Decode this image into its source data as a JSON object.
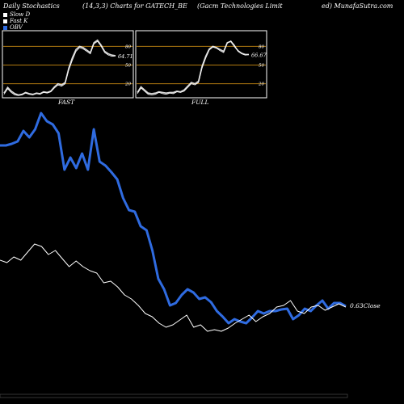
{
  "header": {
    "left": "Daily Stochastics",
    "params": "(14,3,3) Charts for GATECH_BE",
    "company": "(Gacm Technologies Limit",
    "site": "ed) MunafaSutra.com"
  },
  "legend": [
    {
      "label": "Slow D",
      "color": "#ffffff"
    },
    {
      "label": "Fast K",
      "color": "#ffffff"
    },
    {
      "label": "OBV",
      "color": "#2f6be0"
    }
  ],
  "colors": {
    "obv": "#2f6be0",
    "price": "#ffffff",
    "level_line": "#b07a10",
    "background": "#000000"
  },
  "chart_data": [
    {
      "type": "line",
      "title": "FAST",
      "ylim": [
        0,
        100
      ],
      "yticks": [
        "80",
        "50",
        "20"
      ],
      "last_value_label": "64.71",
      "series": [
        {
          "values": [
            5,
            14,
            8,
            4,
            2,
            3,
            6,
            4,
            3,
            5,
            4,
            7,
            6,
            8,
            15,
            20,
            18,
            22,
            45,
            62,
            75,
            80,
            78,
            74,
            70,
            86,
            90,
            82,
            72,
            68,
            66,
            65
          ]
        },
        {
          "values": [
            3,
            12,
            6,
            2,
            1,
            2,
            5,
            3,
            2,
            4,
            3,
            6,
            5,
            7,
            13,
            18,
            16,
            20,
            42,
            58,
            72,
            78,
            76,
            72,
            68,
            84,
            88,
            80,
            70,
            66,
            64,
            64.71
          ]
        }
      ]
    },
    {
      "type": "line",
      "title": "FULL",
      "ylim": [
        0,
        100
      ],
      "yticks": [
        "80",
        "50",
        "20"
      ],
      "last_value_label": "66.67",
      "series": [
        {
          "values": [
            6,
            15,
            10,
            5,
            4,
            5,
            7,
            6,
            5,
            6,
            6,
            8,
            7,
            10,
            16,
            22,
            20,
            24,
            48,
            64,
            76,
            80,
            78,
            75,
            72,
            86,
            88,
            80,
            73,
            69,
            67,
            67
          ]
        },
        {
          "values": [
            4,
            13,
            8,
            3,
            2,
            3,
            6,
            4,
            3,
            5,
            4,
            7,
            6,
            8,
            14,
            20,
            18,
            22,
            45,
            61,
            74,
            79,
            77,
            73,
            70,
            85,
            89,
            82,
            72,
            68,
            66,
            66.67
          ]
        }
      ]
    },
    {
      "type": "line",
      "title": "",
      "last_value_label": "0.63",
      "series_label": "Close",
      "series": [
        {
          "name": "OBV",
          "color": "#2f6be0",
          "values": [
            180,
            180,
            178,
            175,
            162,
            170,
            160,
            140,
            150,
            154,
            165,
            210,
            195,
            208,
            190,
            210,
            160,
            200,
            205,
            213,
            222,
            245,
            260,
            262,
            280,
            285,
            310,
            345,
            358,
            378,
            375,
            365,
            358,
            362,
            370,
            368,
            374,
            385,
            392,
            400,
            395,
            398,
            400,
            393,
            385,
            388,
            385,
            385,
            383,
            382,
            395,
            390,
            382,
            385,
            378,
            372,
            382,
            375,
            375,
            379
          ]
        },
        {
          "name": "Close",
          "color": "#ffffff",
          "values": [
            322,
            325,
            318,
            322,
            312,
            302,
            305,
            315,
            310,
            320,
            330,
            323,
            330,
            335,
            338,
            350,
            348,
            355,
            365,
            370,
            378,
            388,
            392,
            400,
            405,
            402,
            396,
            390,
            405,
            402,
            410,
            408,
            410,
            406,
            400,
            395,
            390,
            398,
            392,
            388,
            380,
            378,
            372,
            385,
            388,
            380,
            378,
            384,
            380,
            376,
            380
          ]
        }
      ]
    }
  ]
}
